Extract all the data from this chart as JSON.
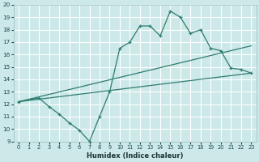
{
  "xlabel": "Humidex (Indice chaleur)",
  "bg_color": "#cce8e8",
  "grid_color": "#ffffff",
  "line_color": "#2e7d6e",
  "xlim": [
    -0.5,
    23.5
  ],
  "ylim": [
    9,
    20
  ],
  "xticks": [
    0,
    1,
    2,
    3,
    4,
    5,
    6,
    7,
    8,
    9,
    10,
    11,
    12,
    13,
    14,
    15,
    16,
    17,
    18,
    19,
    20,
    21,
    22,
    23
  ],
  "yticks": [
    9,
    10,
    11,
    12,
    13,
    14,
    15,
    16,
    17,
    18,
    19,
    20
  ],
  "line1_x": [
    0,
    23
  ],
  "line1_y": [
    12.2,
    14.5
  ],
  "line2_x": [
    0,
    23
  ],
  "line2_y": [
    12.2,
    16.7
  ],
  "line3_x": [
    0,
    2,
    3,
    4,
    5,
    6,
    7,
    8,
    9,
    10,
    11,
    12,
    13,
    14,
    15,
    16,
    17,
    18,
    19,
    20,
    21,
    22,
    23
  ],
  "line3_y": [
    12.2,
    12.5,
    11.8,
    11.2,
    10.5,
    9.9,
    9.0,
    11.0,
    13.0,
    16.5,
    17.0,
    18.3,
    18.3,
    17.5,
    19.5,
    19.0,
    17.7,
    18.0,
    16.5,
    16.3,
    14.9,
    14.8,
    14.5
  ]
}
